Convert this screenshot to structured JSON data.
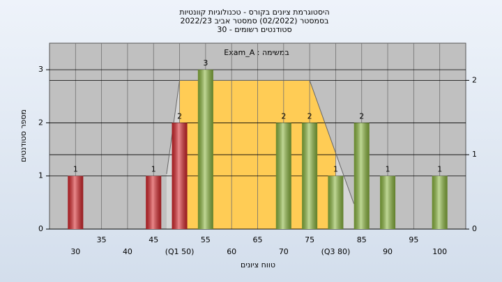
{
  "chart_data": {
    "type": "bar",
    "title": [
      "היסטוגרמת ציונים בקורס - טכנולוגיות קוונטיות",
      "בסמסטר  (02/2022)  סמסטר אביב 2022/23",
      "סטודנטים רשומים - 30"
    ],
    "annotation": "Exam_A : במשימה",
    "xlabel": "טווח ציונים",
    "ylabel": "מספר סטודנטים",
    "x": [
      30,
      45,
      50,
      55,
      70,
      75,
      80,
      85,
      90,
      100
    ],
    "values": [
      1,
      1,
      2,
      3,
      2,
      2,
      1,
      2,
      1,
      1
    ],
    "colors": [
      "#d8262b",
      "#d8262b",
      "#d8262b",
      "#8cb83f",
      "#8cb83f",
      "#8cb83f",
      "#8cb83f",
      "#8cb83f",
      "#8cb83f",
      "#8cb83f"
    ],
    "xlim": [
      25,
      105
    ],
    "xticks": [
      30,
      35,
      40,
      45,
      {
        "value": 50,
        "label": "(Q1 50)"
      },
      55,
      60,
      65,
      70,
      75,
      {
        "value": 80,
        "label": "(Q3 80)"
      },
      85,
      90,
      95,
      100
    ],
    "ylim": [
      0,
      3.5
    ],
    "yticks": [
      0,
      1,
      2,
      3
    ],
    "y2lim": [
      0,
      2.5
    ],
    "y2ticks": [
      0,
      1,
      2
    ],
    "curve": {
      "axis": "y2",
      "x": [
        47.5,
        50,
        75,
        83.5
      ],
      "values": [
        0.74,
        2,
        2,
        0.34
      ],
      "color": "#ffcc55",
      "shade": "#d6d6d6"
    },
    "grid": true
  }
}
